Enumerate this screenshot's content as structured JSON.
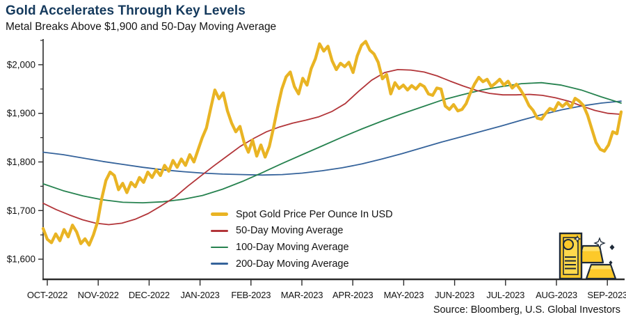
{
  "chart_data": {
    "type": "line",
    "title": "Gold Accelerates Through Key Levels",
    "subtitle": "Metal Breaks Above $1,900 and 50-Day Moving Average",
    "source": "Source: Bloomberg, U.S. Global Investors",
    "grid": false,
    "legend_position": "inside-bottom-center",
    "ylim": [
      1560,
      2050
    ],
    "y_ticks": [
      {
        "value": 1600,
        "label": "$1,600"
      },
      {
        "value": 1700,
        "label": "$1,700"
      },
      {
        "value": 1800,
        "label": "$1,800"
      },
      {
        "value": 1900,
        "label": "$1,900"
      },
      {
        "value": 2000,
        "label": "$2,000"
      }
    ],
    "y_minor_ticks": [
      1650,
      1750,
      1850,
      1950,
      2050
    ],
    "x_tick_labels": [
      "OCT-2022",
      "NOV-2022",
      "DEC-2022",
      "JAN-2023",
      "FEB-2023",
      "MAR-2023",
      "APR-2023",
      "MAY-2023",
      "JUN-2023",
      "JUL-2023",
      "AUG-2023",
      "SEP-2023"
    ],
    "series": [
      {
        "id": "spot",
        "name": "Spot Gold Price Per Ounce In USD",
        "color": "#e9b424",
        "width": 4.3,
        "values": [
          1663,
          1641,
          1634,
          1652,
          1638,
          1661,
          1646,
          1670,
          1656,
          1632,
          1642,
          1629,
          1650,
          1677,
          1725,
          1762,
          1779,
          1772,
          1743,
          1756,
          1737,
          1758,
          1749,
          1768,
          1758,
          1779,
          1768,
          1784,
          1772,
          1793,
          1781,
          1803,
          1789,
          1806,
          1793,
          1815,
          1800,
          1825,
          1850,
          1870,
          1910,
          1948,
          1930,
          1942,
          1905,
          1880,
          1862,
          1873,
          1840,
          1820,
          1845,
          1812,
          1835,
          1810,
          1832,
          1870,
          1912,
          1950,
          1975,
          1985,
          1955,
          1940,
          1972,
          1958,
          1992,
          2012,
          2043,
          2028,
          2038,
          2008,
          1990,
          2003,
          1996,
          2005,
          1984,
          2018,
          2040,
          2048,
          2030,
          2022,
          2005,
          1971,
          1980,
          1940,
          1963,
          1951,
          1958,
          1948,
          1957,
          1950,
          1960,
          1955,
          1940,
          1937,
          1952,
          1950,
          1915,
          1908,
          1918,
          1905,
          1908,
          1920,
          1942,
          1960,
          1974,
          1965,
          1970,
          1955,
          1962,
          1970,
          1958,
          1966,
          1952,
          1960,
          1948,
          1934,
          1916,
          1906,
          1890,
          1888,
          1900,
          1910,
          1906,
          1922,
          1914,
          1922,
          1912,
          1931,
          1925,
          1916,
          1896,
          1868,
          1840,
          1826,
          1822,
          1835,
          1862,
          1858,
          1903
        ]
      },
      {
        "id": "ma50",
        "name": "50-Day Moving Average",
        "color": "#b23539",
        "width": 1.8,
        "values": [
          1715,
          1702,
          1691,
          1681,
          1674,
          1671,
          1674,
          1682,
          1694,
          1710,
          1727,
          1750,
          1771,
          1792,
          1812,
          1832,
          1848,
          1862,
          1872,
          1880,
          1886,
          1893,
          1904,
          1920,
          1945,
          1968,
          1984,
          1990,
          1989,
          1985,
          1977,
          1966,
          1956,
          1947,
          1941,
          1938,
          1938,
          1939,
          1937,
          1932,
          1925,
          1915,
          1906,
          1900,
          1898
        ]
      },
      {
        "id": "ma100",
        "name": "100-Day Moving Average",
        "color": "#26824f",
        "width": 1.8,
        "values": [
          1755,
          1741,
          1730,
          1722,
          1717,
          1716,
          1718,
          1723,
          1731,
          1744,
          1760,
          1778,
          1797,
          1815,
          1833,
          1851,
          1868,
          1884,
          1899,
          1913,
          1927,
          1938,
          1948,
          1955,
          1961,
          1963,
          1958,
          1948,
          1934,
          1921
        ]
      },
      {
        "id": "ma200",
        "name": "200-Day Moving Average",
        "color": "#35639b",
        "width": 1.8,
        "values": [
          1820,
          1815,
          1808,
          1801,
          1795,
          1789,
          1784,
          1780,
          1777,
          1775,
          1774,
          1773,
          1774,
          1777,
          1782,
          1788,
          1796,
          1806,
          1817,
          1829,
          1841,
          1852,
          1863,
          1874,
          1886,
          1897,
          1907,
          1915,
          1921,
          1925
        ]
      }
    ]
  }
}
